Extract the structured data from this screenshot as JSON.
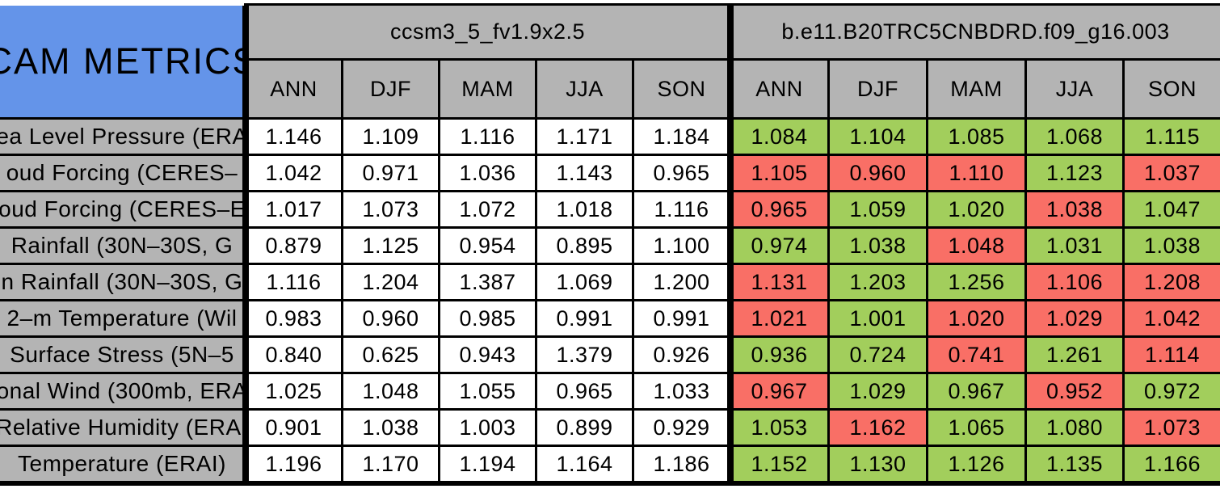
{
  "colors": {
    "header_blue": "#6494E9",
    "header_gray": "#b4b4b4",
    "cell_green": "#A2CE5C",
    "cell_red": "#F96F66",
    "cell_white": "#ffffff",
    "border_black": "#000000"
  },
  "chart_data": {
    "type": "table",
    "title": "CAM METRICS",
    "models": [
      {
        "name": "ccsm3_5_fv1.9x2.5",
        "seasons": [
          "ANN",
          "DJF",
          "MAM",
          "JJA",
          "SON"
        ]
      },
      {
        "name": "b.e11.B20TRC5CNBDRD.f09_g16.003",
        "seasons": [
          "ANN",
          "DJF",
          "MAM",
          "JJA",
          "SON"
        ]
      }
    ],
    "rows": [
      {
        "label": "ea Level Pressure (ERA",
        "model1": [
          "1.146",
          "1.109",
          "1.116",
          "1.171",
          "1.184"
        ],
        "model2": [
          "1.084",
          "1.104",
          "1.085",
          "1.068",
          "1.115"
        ],
        "model2_colors": [
          "g",
          "g",
          "g",
          "g",
          "g"
        ]
      },
      {
        "label": "oud Forcing (CERES–",
        "model1": [
          "1.042",
          "0.971",
          "1.036",
          "1.143",
          "0.965"
        ],
        "model2": [
          "1.105",
          "0.960",
          "1.110",
          "1.123",
          "1.037"
        ],
        "model2_colors": [
          "r",
          "r",
          "r",
          "g",
          "r"
        ]
      },
      {
        "label": "oud Forcing (CERES–E",
        "model1": [
          "1.017",
          "1.073",
          "1.072",
          "1.018",
          "1.116"
        ],
        "model2": [
          "0.965",
          "1.059",
          "1.020",
          "1.038",
          "1.047"
        ],
        "model2_colors": [
          "r",
          "g",
          "g",
          "r",
          "g"
        ]
      },
      {
        "label": "Rainfall (30N–30S, G",
        "model1": [
          "0.879",
          "1.125",
          "0.954",
          "0.895",
          "1.100"
        ],
        "model2": [
          "0.974",
          "1.038",
          "1.048",
          "1.031",
          "1.038"
        ],
        "model2_colors": [
          "g",
          "g",
          "r",
          "g",
          "g"
        ]
      },
      {
        "label": "n Rainfall (30N–30S, G",
        "model1": [
          "1.116",
          "1.204",
          "1.387",
          "1.069",
          "1.200"
        ],
        "model2": [
          "1.131",
          "1.203",
          "1.256",
          "1.106",
          "1.208"
        ],
        "model2_colors": [
          "r",
          "g",
          "g",
          "r",
          "r"
        ]
      },
      {
        "label": "2–m Temperature (Wil",
        "model1": [
          "0.983",
          "0.960",
          "0.985",
          "0.991",
          "0.991"
        ],
        "model2": [
          "1.021",
          "1.001",
          "1.020",
          "1.029",
          "1.042"
        ],
        "model2_colors": [
          "r",
          "g",
          "r",
          "r",
          "r"
        ]
      },
      {
        "label": "Surface Stress (5N–5",
        "model1": [
          "0.840",
          "0.625",
          "0.943",
          "1.379",
          "0.926"
        ],
        "model2": [
          "0.936",
          "0.724",
          "0.741",
          "1.261",
          "1.114"
        ],
        "model2_colors": [
          "g",
          "g",
          "r",
          "g",
          "r"
        ]
      },
      {
        "label": "onal Wind (300mb, ERA",
        "model1": [
          "1.025",
          "1.048",
          "1.055",
          "0.965",
          "1.033"
        ],
        "model2": [
          "0.967",
          "1.029",
          "0.967",
          "0.952",
          "0.972"
        ],
        "model2_colors": [
          "r",
          "g",
          "g",
          "r",
          "g"
        ]
      },
      {
        "label": "Relative Humidity (ERAI",
        "model1": [
          "0.901",
          "1.038",
          "1.003",
          "0.899",
          "0.929"
        ],
        "model2": [
          "1.053",
          "1.162",
          "1.065",
          "1.080",
          "1.073"
        ],
        "model2_colors": [
          "g",
          "r",
          "g",
          "g",
          "r"
        ]
      },
      {
        "label": "Temperature (ERAI)",
        "model1": [
          "1.196",
          "1.170",
          "1.194",
          "1.164",
          "1.186"
        ],
        "model2": [
          "1.152",
          "1.130",
          "1.126",
          "1.135",
          "1.166"
        ],
        "model2_colors": [
          "g",
          "g",
          "g",
          "g",
          "g"
        ]
      }
    ]
  }
}
